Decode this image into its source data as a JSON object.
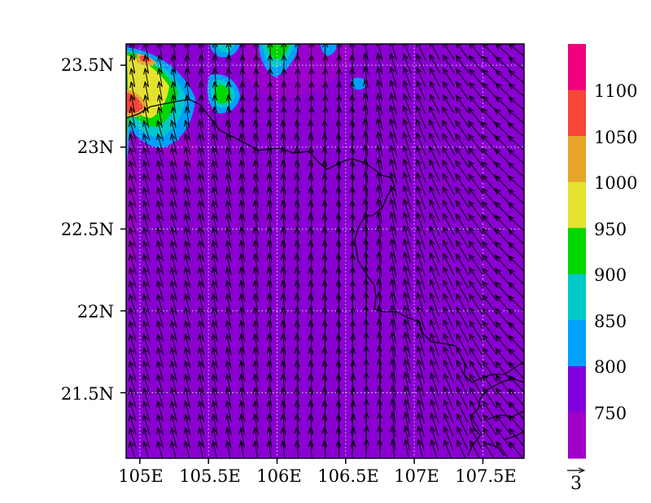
{
  "map": {
    "lat_ticks": [
      "23.5N",
      "23N",
      "22.5N",
      "22N",
      "21.5N"
    ],
    "lon_ticks": [
      "105E",
      "105.5E",
      "106E",
      "106.5E",
      "107E",
      "107.5E"
    ],
    "lon_values": [
      105,
      105.5,
      106,
      106.5,
      107,
      107.5
    ],
    "lat_values": [
      23.5,
      23,
      22.5,
      22,
      21.5
    ],
    "extent": {
      "lon_min": 104.9,
      "lon_max": 107.8,
      "lat_min": 21.1,
      "lat_max": 23.63
    },
    "background_color": "#8a00d2",
    "grid": "dotted"
  },
  "colorbar": {
    "labels": [
      "1100",
      "1050",
      "1000",
      "950",
      "900",
      "850",
      "800",
      "750"
    ],
    "colors": [
      "#f0007a",
      "#f64638",
      "#e6a42a",
      "#e4e22e",
      "#00d600",
      "#00c8c8",
      "#00a0ff",
      "#8200dc",
      "#a000c8"
    ]
  },
  "vector_legend": {
    "value": "3"
  },
  "chart_data": {
    "type": "heatmap",
    "title": "",
    "x_ticks": [
      "105E",
      "105.5E",
      "106E",
      "106.5E",
      "107E",
      "107.5E"
    ],
    "y_ticks": [
      "23.5N",
      "23N",
      "22.5N",
      "22N",
      "21.5N"
    ],
    "xlim": [
      104.9,
      107.8
    ],
    "ylim": [
      21.1,
      23.63
    ],
    "levels": [
      750,
      800,
      850,
      900,
      950,
      1000,
      1050,
      1100
    ],
    "features": [
      {
        "lon": 105.02,
        "lat": 23.27,
        "value": 1075,
        "note": ""
      },
      {
        "lon": 105.1,
        "lat": 23.52,
        "value": 1050
      },
      {
        "lon": 105.25,
        "lat": 23.42,
        "value": 950
      },
      {
        "lon": 105.6,
        "lat": 23.38,
        "value": 900
      },
      {
        "lon": 105.95,
        "lat": 23.52,
        "value": 850
      },
      {
        "lon": 106.5,
        "lat": 23.38,
        "value": 850
      }
    ],
    "wind": {
      "direction": "mostly northward / north-northwest",
      "reference_speed": 3
    }
  }
}
